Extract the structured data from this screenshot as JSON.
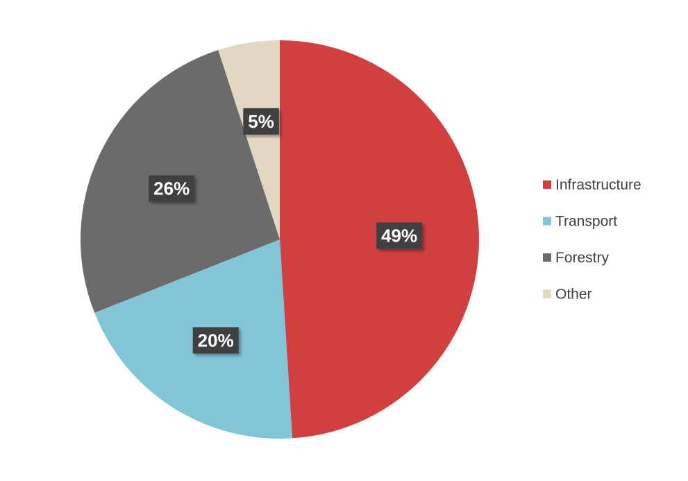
{
  "chart_data": {
    "type": "pie",
    "start_angle_deg": 0,
    "direction": "clockwise",
    "legend_position": "right",
    "data_label_style": {
      "background": "#404040",
      "text_color": "#ffffff"
    },
    "slices": [
      {
        "name": "Infrastructure",
        "value": 49,
        "label": "49%",
        "color": "#d04040"
      },
      {
        "name": "Transport",
        "value": 20,
        "label": "20%",
        "color": "#82c5d6"
      },
      {
        "name": "Forestry",
        "value": 26,
        "label": "26%",
        "color": "#6b6b69"
      },
      {
        "name": "Other",
        "value": 5,
        "label": "5%",
        "color": "#e2d7c1"
      }
    ]
  }
}
